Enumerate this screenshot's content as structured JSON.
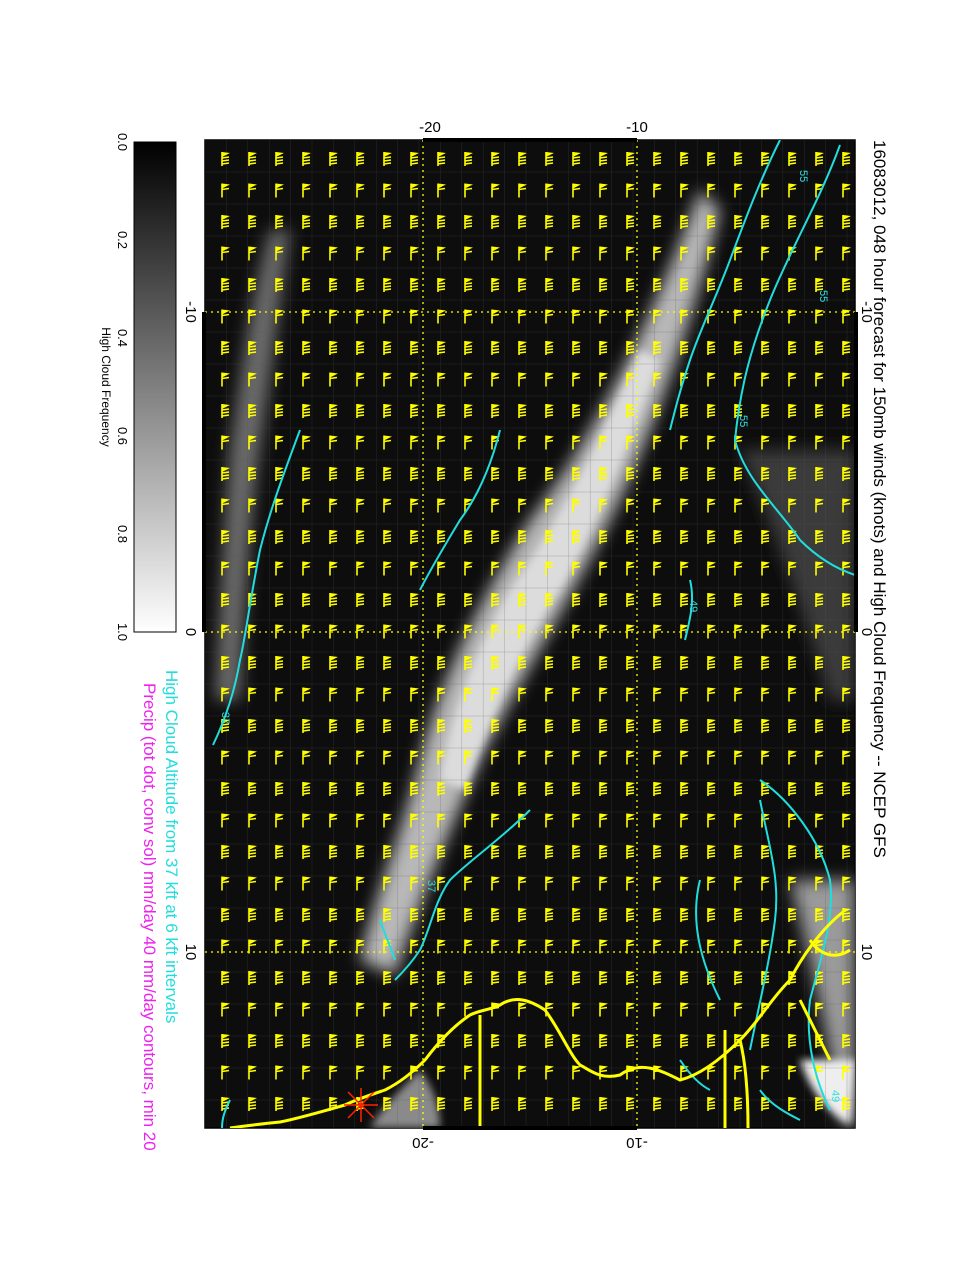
{
  "title": "16083012, 048 hour forecast for 150mb winds (knots) and High Cloud Frequency -- NCEP GFS",
  "legend": {
    "altitude": "High Cloud Altitude from 37 kft at 6 kft intervals",
    "precip": "Precip (tot dot, conv sol) mm/day 40 mm/day contours, min 20",
    "altitude_color": "#22dddd",
    "precip_color": "#ee22ee"
  },
  "colorbar": {
    "label": "High Cloud Frequency",
    "ticks": [
      "0.0",
      "0.2",
      "0.4",
      "0.6",
      "0.8",
      "1.0"
    ]
  },
  "axes": {
    "top": [
      "-20",
      "-10"
    ],
    "bottom": [
      "-20",
      "-10"
    ],
    "left": [
      "-10",
      "0",
      "10"
    ],
    "right": [
      "-10",
      "0",
      "10"
    ]
  },
  "contour_labels": [
    "37",
    "43",
    "49",
    "55"
  ],
  "colors": {
    "barb": "#ffff00",
    "coast": "#ffff00",
    "contour": "#22dddd",
    "marker": "#ff2200",
    "grid": "#ffff00"
  }
}
